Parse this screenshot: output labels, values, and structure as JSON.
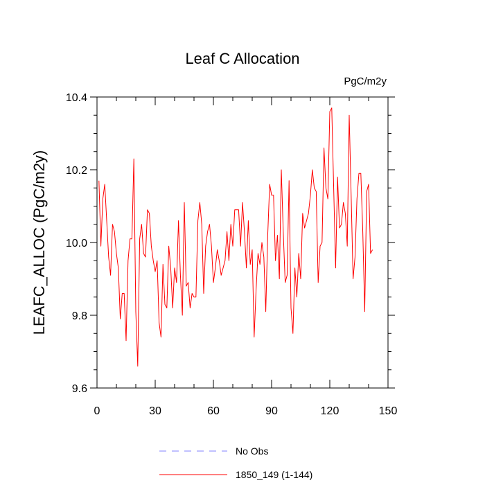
{
  "chart_data": {
    "type": "line",
    "title": "Leaf C Allocation",
    "units_label": "PgC/m2y",
    "xlabel": "",
    "ylabel": "LEAFC_ALLOC  (PgC/m2y)",
    "xlim": [
      0,
      150
    ],
    "ylim": [
      9.6,
      10.4
    ],
    "x_ticks": [
      0,
      30,
      60,
      90,
      120,
      150
    ],
    "x_tick_labels": [
      "0",
      "30",
      "60",
      "90",
      "120",
      "150"
    ],
    "y_ticks": [
      9.6,
      9.8,
      10.0,
      10.2,
      10.4
    ],
    "y_tick_labels": [
      "9.6",
      "9.8",
      "10.0",
      "10.2",
      "10.4"
    ],
    "legend": [
      {
        "label": "No Obs",
        "color": "#8080ff",
        "style": "dashed"
      },
      {
        "label": "1850_149 (1-144)",
        "color": "#ff0000",
        "style": "solid"
      }
    ],
    "series": [
      {
        "name": "1850_149 (1-144)",
        "color": "#ff0000",
        "x_start": 1,
        "values": [
          10.17,
          9.99,
          10.12,
          10.16,
          10.06,
          9.96,
          9.91,
          10.05,
          10.03,
          9.97,
          9.93,
          9.79,
          9.86,
          9.86,
          9.73,
          9.95,
          10.01,
          10.01,
          10.23,
          9.81,
          9.66,
          10.01,
          10.05,
          9.97,
          9.96,
          10.09,
          10.08,
          9.99,
          9.95,
          9.92,
          9.95,
          9.78,
          9.74,
          9.94,
          9.83,
          9.82,
          9.99,
          9.93,
          9.82,
          9.93,
          9.89,
          10.06,
          9.91,
          9.8,
          10.11,
          9.88,
          9.89,
          9.82,
          9.86,
          9.85,
          9.85,
          10.06,
          10.11,
          10.05,
          9.86,
          9.99,
          10.03,
          10.05,
          9.99,
          9.89,
          9.93,
          9.98,
          9.95,
          9.91,
          9.93,
          9.95,
          10.03,
          9.95,
          10.05,
          9.99,
          10.09,
          10.09,
          10.09,
          9.99,
          10.11,
          10.03,
          9.93,
          10.06,
          9.94,
          9.98,
          9.74,
          9.87,
          9.97,
          9.94,
          10.0,
          9.96,
          9.81,
          10.02,
          10.16,
          10.13,
          10.13,
          9.95,
          10.02,
          9.9,
          10.2,
          10.03,
          9.89,
          9.91,
          10.17,
          9.82,
          9.75,
          9.93,
          9.85,
          9.97,
          9.9,
          10.08,
          10.04,
          10.06,
          10.08,
          10.13,
          10.2,
          10.15,
          10.14,
          9.89,
          9.99,
          10.0,
          10.26,
          10.15,
          10.12,
          10.36,
          10.37,
          10.15,
          9.93,
          10.18,
          10.04,
          10.05,
          10.11,
          10.08,
          9.99,
          10.35,
          10.13,
          9.9,
          9.96,
          10.12,
          10.19,
          10.19,
          10.03,
          9.81,
          10.14,
          10.16,
          9.97,
          9.98
        ]
      }
    ]
  }
}
